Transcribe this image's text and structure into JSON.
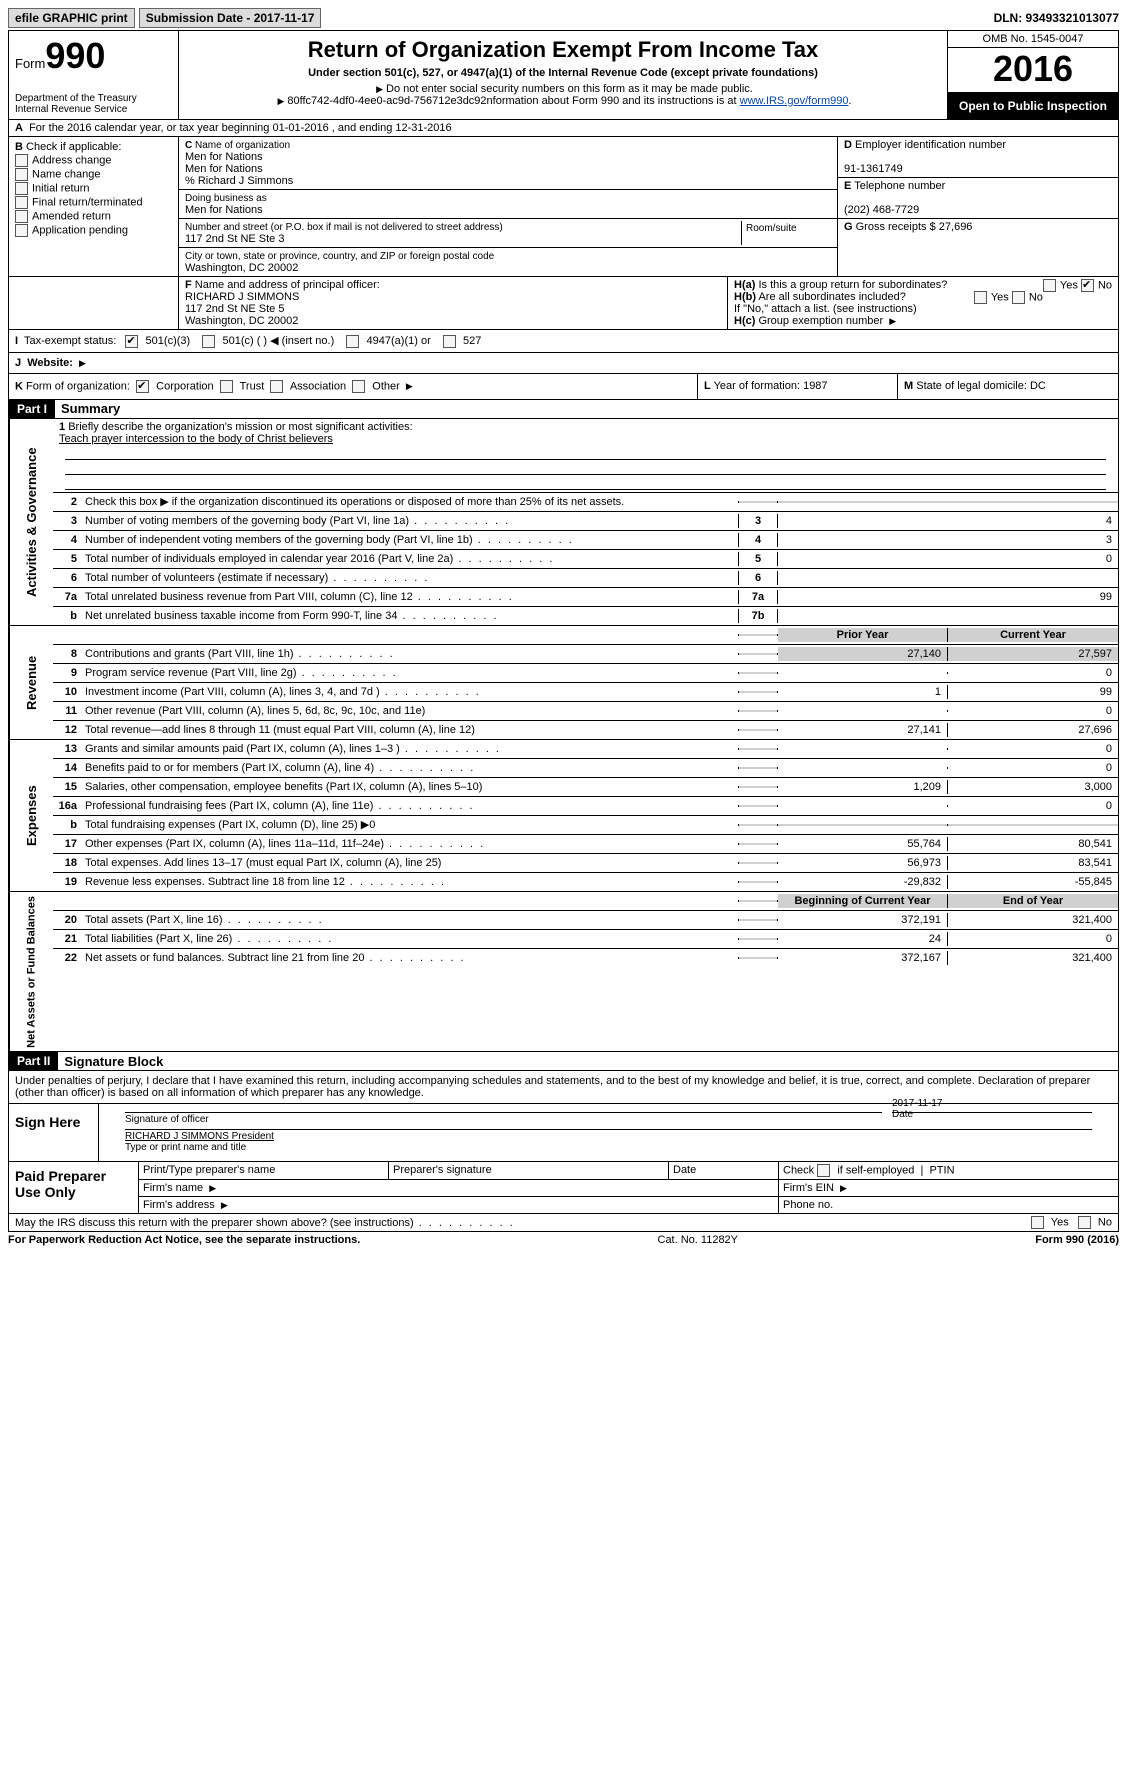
{
  "topbar": {
    "efile": "efile GRAPHIC print",
    "submission": "Submission Date - 2017-11-17",
    "dln": "DLN: 93493321013077"
  },
  "header": {
    "form_label": "Form",
    "form_no": "990",
    "dept": "Department of the Treasury\nInternal Revenue Service",
    "title": "Return of Organization Exempt From Income Tax",
    "subtitle": "Under section 501(c), 527, or 4947(a)(1) of the Internal Revenue Code (except private foundations)",
    "bullet1": "Do not enter social security numbers on this form as it may be made public.",
    "bullet2": "80ffc742-4df0-4ee0-ac9d-756712e3dc92nformation about Form 990 and its instructions is at ",
    "link": "www.IRS.gov/form990",
    "omb": "OMB No. 1545-0047",
    "year": "2016",
    "open": "Open to Public Inspection"
  },
  "row_a": "For the 2016 calendar year, or tax year beginning 01-01-2016   , and ending 12-31-2016",
  "col_b": {
    "title": "Check if applicable:",
    "items": [
      "Address change",
      "Name change",
      "Initial return",
      "Final return/terminated",
      "Amended return",
      "Application pending"
    ]
  },
  "col_c": {
    "name_label": "Name of organization",
    "line1": "Men for Nations",
    "line2": "Men for Nations",
    "line3": "% Richard J Simmons",
    "dba_label": "Doing business as",
    "dba": "Men for Nations",
    "street_label": "Number and street (or P.O. box if mail is not delivered to street address)",
    "street": "117 2nd St NE Ste 3",
    "room_label": "Room/suite",
    "city_label": "City or town, state or province, country, and ZIP or foreign postal code",
    "city": "Washington, DC  20002"
  },
  "col_d": {
    "ein_label": "Employer identification number",
    "ein": "91-1361749",
    "phone_label": "Telephone number",
    "phone": "(202) 468-7729",
    "gross_label": "Gross receipts $",
    "gross": "27,696"
  },
  "row_f": {
    "label": "Name and address of principal officer:",
    "name": "RICHARD J SIMMONS",
    "addr1": "117 2nd St NE Ste 5",
    "addr2": "Washington, DC  20002"
  },
  "row_h": {
    "ha": "Is this a group return for subordinates?",
    "hb": "Are all subordinates included?",
    "hc_note": "If \"No,\" attach a list. (see instructions)",
    "hc": "Group exemption number"
  },
  "row_i": {
    "label": "Tax-exempt status:",
    "opts": [
      "501(c)(3)",
      "501(c) (   ) ◀ (insert no.)",
      "4947(a)(1) or",
      "527"
    ]
  },
  "row_j": {
    "label": "Website:"
  },
  "row_k": {
    "label": "Form of organization:",
    "opts": [
      "Corporation",
      "Trust",
      "Association",
      "Other"
    ],
    "l": "Year of formation: 1987",
    "m": "State of legal domicile: DC"
  },
  "part1": {
    "header": "Part I",
    "title": "Summary"
  },
  "summary": {
    "briefly_label": "Briefly describe the organization's mission or most significant activities:",
    "briefly": "Teach prayer intercession to the body of Christ believers",
    "l2": "Check this box ▶    if the organization discontinued its operations or disposed of more than 25% of its net assets.",
    "l3": {
      "t": "Number of voting members of the governing body (Part VI, line 1a)",
      "n": "3",
      "v": "4"
    },
    "l4": {
      "t": "Number of independent voting members of the governing body (Part VI, line 1b)",
      "n": "4",
      "v": "3"
    },
    "l5": {
      "t": "Total number of individuals employed in calendar year 2016 (Part V, line 2a)",
      "n": "5",
      "v": "0"
    },
    "l6": {
      "t": "Total number of volunteers (estimate if necessary)",
      "n": "6",
      "v": ""
    },
    "l7a": {
      "t": "Total unrelated business revenue from Part VIII, column (C), line 12",
      "n": "7a",
      "v": "99"
    },
    "l7b": {
      "t": "Net unrelated business taxable income from Form 990-T, line 34",
      "n": "7b",
      "v": ""
    },
    "hdr_prior": "Prior Year",
    "hdr_curr": "Current Year",
    "l8": {
      "t": "Contributions and grants (Part VIII, line 1h)",
      "p": "27,140",
      "c": "27,597"
    },
    "l9": {
      "t": "Program service revenue (Part VIII, line 2g)",
      "p": "",
      "c": "0"
    },
    "l10": {
      "t": "Investment income (Part VIII, column (A), lines 3, 4, and 7d )",
      "p": "1",
      "c": "99"
    },
    "l11": {
      "t": "Other revenue (Part VIII, column (A), lines 5, 6d, 8c, 9c, 10c, and 11e)",
      "p": "",
      "c": "0"
    },
    "l12": {
      "t": "Total revenue—add lines 8 through 11 (must equal Part VIII, column (A), line 12)",
      "p": "27,141",
      "c": "27,696"
    },
    "l13": {
      "t": "Grants and similar amounts paid (Part IX, column (A), lines 1–3 )",
      "p": "",
      "c": "0"
    },
    "l14": {
      "t": "Benefits paid to or for members (Part IX, column (A), line 4)",
      "p": "",
      "c": "0"
    },
    "l15": {
      "t": "Salaries, other compensation, employee benefits (Part IX, column (A), lines 5–10)",
      "p": "1,209",
      "c": "3,000"
    },
    "l16a": {
      "t": "Professional fundraising fees (Part IX, column (A), line 11e)",
      "p": "",
      "c": "0"
    },
    "l16b": {
      "t": "Total fundraising expenses (Part IX, column (D), line 25) ▶0"
    },
    "l17": {
      "t": "Other expenses (Part IX, column (A), lines 11a–11d, 11f–24e)",
      "p": "55,764",
      "c": "80,541"
    },
    "l18": {
      "t": "Total expenses. Add lines 13–17 (must equal Part IX, column (A), line 25)",
      "p": "56,973",
      "c": "83,541"
    },
    "l19": {
      "t": "Revenue less expenses. Subtract line 18 from line 12",
      "p": "-29,832",
      "c": "-55,845"
    },
    "hdr_beg": "Beginning of Current Year",
    "hdr_end": "End of Year",
    "l20": {
      "t": "Total assets (Part X, line 16)",
      "p": "372,191",
      "c": "321,400"
    },
    "l21": {
      "t": "Total liabilities (Part X, line 26)",
      "p": "24",
      "c": "0"
    },
    "l22": {
      "t": "Net assets or fund balances. Subtract line 21 from line 20",
      "p": "372,167",
      "c": "321,400"
    }
  },
  "part2": {
    "header": "Part II",
    "title": "Signature Block",
    "perjury": "Under penalties of perjury, I declare that I have examined this return, including accompanying schedules and statements, and to the best of my knowledge and belief, it is true, correct, and complete. Declaration of preparer (other than officer) is based on all information of which preparer has any knowledge."
  },
  "sign": {
    "lab": "Sign Here",
    "sig_lab": "Signature of officer",
    "date_lab": "Date",
    "date_val": "2017-11-17",
    "name": "RICHARD J SIMMONS President",
    "name_lab": "Type or print name and title"
  },
  "preparer": {
    "lab": "Paid Preparer Use Only",
    "h1": "Print/Type preparer's name",
    "h2": "Preparer's signature",
    "h3": "Date",
    "h4a": "Check",
    "h4b": "if self-employed",
    "h5": "PTIN",
    "firm_name": "Firm's name",
    "firm_addr": "Firm's address",
    "firm_ein": "Firm's EIN",
    "phone": "Phone no."
  },
  "discuss": "May the IRS discuss this return with the preparer shown above? (see instructions)",
  "footer": {
    "l": "For Paperwork Reduction Act Notice, see the separate instructions.",
    "m": "Cat. No. 11282Y",
    "r": "Form 990 (2016)"
  },
  "vert": {
    "gov": "Activities & Governance",
    "rev": "Revenue",
    "exp": "Expenses",
    "net": "Net Assets or Fund Balances"
  }
}
